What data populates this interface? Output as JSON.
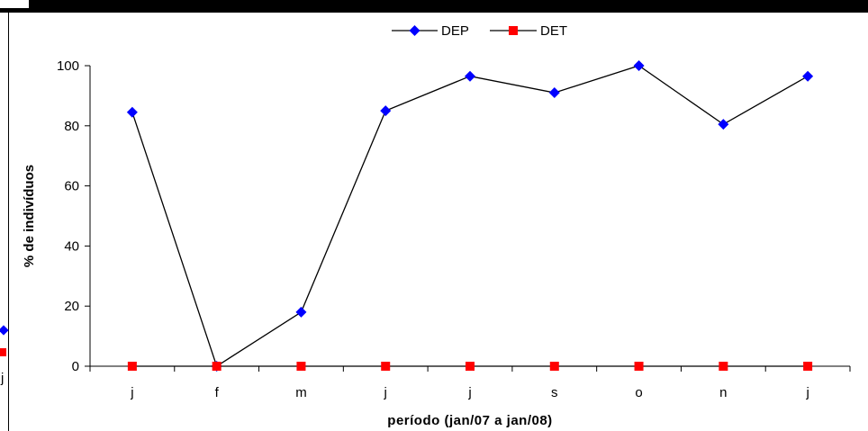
{
  "chart_data": {
    "type": "line",
    "categories": [
      "j",
      "f",
      "m",
      "j",
      "j",
      "s",
      "o",
      "n",
      "j"
    ],
    "series": [
      {
        "name": "DEP",
        "values": [
          84.5,
          0,
          18,
          85,
          96.5,
          91,
          100,
          80.5,
          96.5
        ],
        "color": "#0000ff",
        "marker": "diamond"
      },
      {
        "name": "DET",
        "values": [
          0,
          0,
          0,
          0,
          0,
          0,
          0,
          0,
          0
        ],
        "color": "#ff0000",
        "marker": "square"
      }
    ],
    "title": "",
    "xlabel": "período (jan/07 a jan/08)",
    "ylabel": "% de indivíduos",
    "ylim": [
      0,
      100
    ],
    "yticks": [
      0,
      20,
      40,
      60,
      80,
      100
    ],
    "grid": false,
    "legend": "top-center"
  },
  "fragment": {
    "label": "j"
  }
}
